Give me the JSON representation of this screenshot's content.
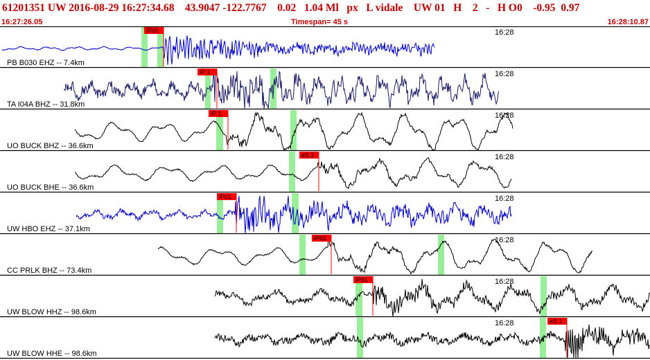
{
  "header": {
    "title": "61201351 UW 2016-08-29 16:27:34.68    43.9047 -122.7767    0.02   1.04 Ml   px   L vidale    UW 01   H    2   -   H O0    -0.95  0.97",
    "start_time": "16:27:26.05",
    "timespan": "Timespan=  45 s",
    "end_time": "16:28:10.87"
  },
  "colors": {
    "header_text": "#c00000",
    "divider": "#000000",
    "pick_flag": "#ff0000",
    "pick_window": "#99ee99",
    "trace_blue": "#0000cc",
    "trace_navy": "#1a1a66",
    "trace_black": "#000000"
  },
  "channels": [
    {
      "label": "PB B030 EHZ -- 7.4km",
      "time_mark": "16:28",
      "pick": "iPc0",
      "color": "#0000cc"
    },
    {
      "label": "TA I04A BHZ -- 31.8km",
      "time_mark": "16:28",
      "pick": "iP 1",
      "color": "#1a1a66"
    },
    {
      "label": "UO BUCK BHZ -- 36.6km",
      "time_mark": "16:28",
      "pick": "iP 1",
      "color": "#000000"
    },
    {
      "label": "UO BUCK BHE -- 36.6km",
      "time_mark": "16:28",
      "pick": "eS 2",
      "color": "#000000"
    },
    {
      "label": "UW HBO EHZ -- 37.1km",
      "time_mark": "16:28",
      "pick": "iPc1",
      "color": "#0000cc"
    },
    {
      "label": "CC PRLK BHZ -- 73.4km",
      "time_mark": "16:28",
      "pick": "iPd1",
      "color": "#000000"
    },
    {
      "label": "UW BLOW HHZ -- 98.6km",
      "time_mark": "16:28",
      "pick": "iPd1",
      "color": "#000000"
    },
    {
      "label": "UW BLOW HHE -- 98.6km",
      "time_mark": "16:28",
      "pick": "eS 1",
      "color": "#000000"
    }
  ]
}
